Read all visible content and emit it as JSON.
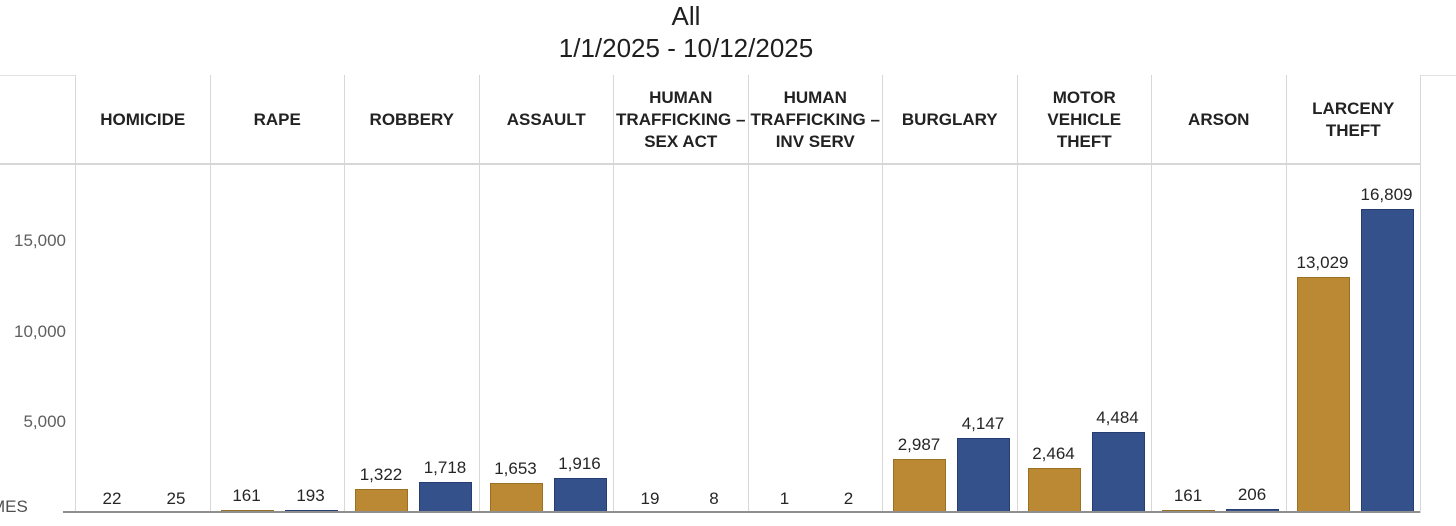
{
  "title": "All",
  "subtitle": "1/1/2025 - 10/12/2025",
  "y_axis": {
    "ticks": {
      "t15000": "15,000",
      "t10000": "10,000",
      "t5000": "5,000"
    },
    "clipped_label": "MES"
  },
  "colors": {
    "gold": "#BB8933",
    "gold_edge": "#9a7122",
    "blue": "#34518B",
    "blue_edge": "#263e6f",
    "divider": "#d7d7d7",
    "axis_line": "#8f8f8f",
    "value_label_text": "#262626",
    "axis_text": "#5f5f5f"
  },
  "chart_data": {
    "type": "bar",
    "title": "All",
    "subtitle": "1/1/2025 - 10/12/2025",
    "categories": [
      "HOMICIDE",
      "RAPE",
      "ROBBERY",
      "ASSAULT",
      "HUMAN\nTRAFFICKING –\nSEX ACT",
      "HUMAN\nTRAFFICKING –\nINV SERV",
      "BURGLARY",
      "MOTOR\nVEHICLE\nTHEFT",
      "ARSON",
      "LARCENY\nTHEFT"
    ],
    "series": [
      {
        "name": "gold",
        "color": "#BB8933",
        "values": [
          22,
          161,
          1322,
          1653,
          19,
          1,
          2987,
          2464,
          161,
          13029
        ]
      },
      {
        "name": "blue",
        "color": "#34518B",
        "values": [
          25,
          193,
          1718,
          1916,
          8,
          2,
          4147,
          4484,
          206,
          16809
        ]
      }
    ],
    "value_labels_shown": true,
    "xlabel": "",
    "ylabel_partial_visible": "MES",
    "yticks": [
      5000,
      10000,
      15000
    ],
    "ylim": [
      0,
      19300
    ],
    "grid": "off",
    "legend": "none"
  }
}
